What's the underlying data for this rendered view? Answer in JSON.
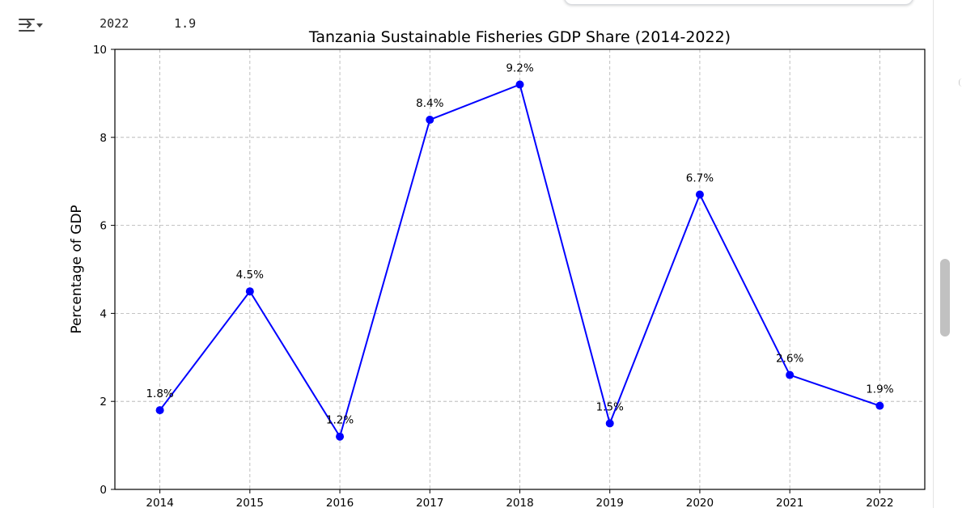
{
  "console": {
    "year": "2022",
    "value": "1.9"
  },
  "icons": {
    "output_toggle": "output-toggle-icon"
  },
  "colors": {
    "series_line": "#0000ff",
    "grid": "#b0b0b0"
  },
  "chart_data": {
    "type": "line",
    "title": "Tanzania Sustainable Fisheries GDP Share (2014-2022)",
    "xlabel": "",
    "ylabel": "Percentage of GDP",
    "x": [
      2014,
      2015,
      2016,
      2017,
      2018,
      2019,
      2020,
      2021,
      2022
    ],
    "y": [
      1.8,
      4.5,
      1.2,
      8.4,
      9.2,
      1.5,
      6.7,
      2.6,
      1.9
    ],
    "data_labels": [
      "1.8%",
      "4.5%",
      "1.2%",
      "8.4%",
      "9.2%",
      "1.5%",
      "6.7%",
      "2.6%",
      "1.9%"
    ],
    "xticks": [
      "2014",
      "2015",
      "2016",
      "2017",
      "2018",
      "2019",
      "2020",
      "2021",
      "2022"
    ],
    "yticks": [
      0,
      2,
      4,
      6,
      8,
      10
    ],
    "ylim": [
      0,
      10
    ],
    "grid": true,
    "grid_style": "dashed",
    "marker": "circle",
    "legend": false
  }
}
